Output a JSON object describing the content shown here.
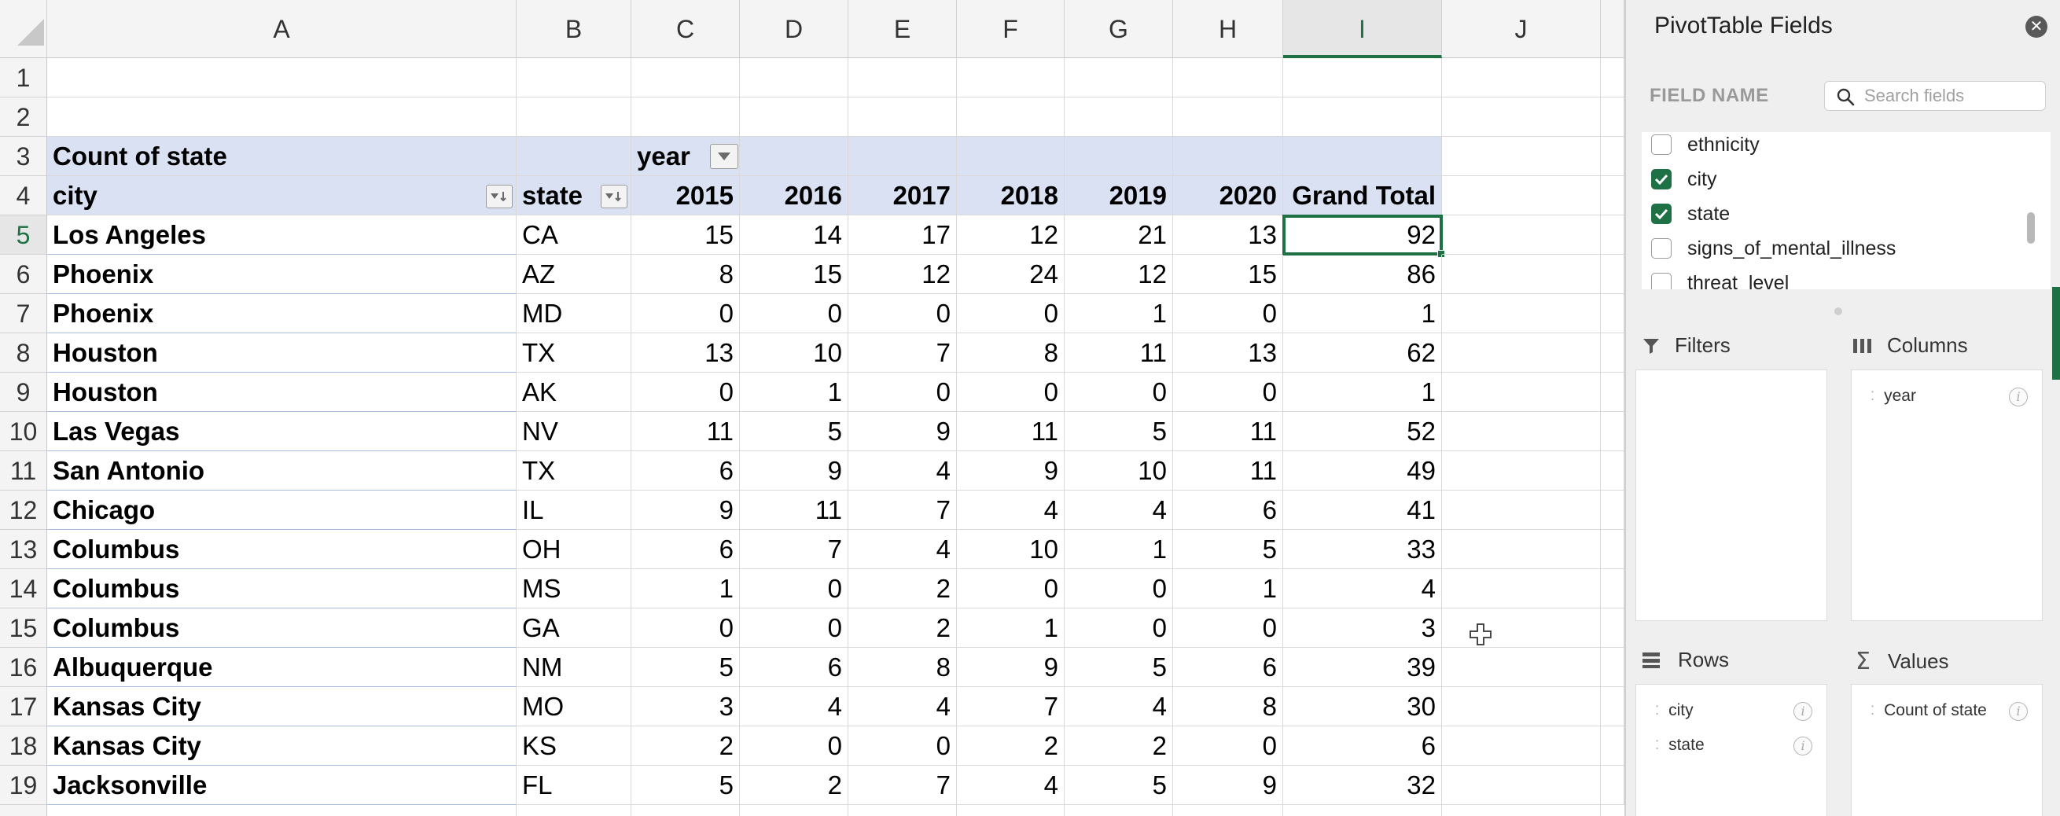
{
  "grid": {
    "columns": [
      "A",
      "B",
      "C",
      "D",
      "E",
      "F",
      "G",
      "H",
      "I",
      "J"
    ],
    "row_numbers": [
      "1",
      "2",
      "3",
      "4",
      "5",
      "6",
      "7",
      "8",
      "9",
      "10",
      "11",
      "12",
      "13",
      "14",
      "15",
      "16",
      "17",
      "18",
      "19"
    ],
    "active_column": "I",
    "active_row": "5"
  },
  "pivot": {
    "header_label": "Count of state",
    "column_field_label": "year",
    "row_field_city": "city",
    "row_field_state": "state",
    "years": [
      "2015",
      "2016",
      "2017",
      "2018",
      "2019",
      "2020"
    ],
    "grand_total_label": "Grand Total",
    "rows": [
      {
        "city": "Los Angeles",
        "state": "CA",
        "v": [
          "15",
          "14",
          "17",
          "12",
          "21",
          "13"
        ],
        "total": "92"
      },
      {
        "city": "Phoenix",
        "state": "AZ",
        "v": [
          "8",
          "15",
          "12",
          "24",
          "12",
          "15"
        ],
        "total": "86"
      },
      {
        "city": "Phoenix",
        "state": "MD",
        "v": [
          "0",
          "0",
          "0",
          "0",
          "1",
          "0"
        ],
        "total": "1"
      },
      {
        "city": "Houston",
        "state": "TX",
        "v": [
          "13",
          "10",
          "7",
          "8",
          "11",
          "13"
        ],
        "total": "62"
      },
      {
        "city": "Houston",
        "state": "AK",
        "v": [
          "0",
          "1",
          "0",
          "0",
          "0",
          "0"
        ],
        "total": "1"
      },
      {
        "city": "Las Vegas",
        "state": "NV",
        "v": [
          "11",
          "5",
          "9",
          "11",
          "5",
          "11"
        ],
        "total": "52"
      },
      {
        "city": "San Antonio",
        "state": "TX",
        "v": [
          "6",
          "9",
          "4",
          "9",
          "10",
          "11"
        ],
        "total": "49"
      },
      {
        "city": "Chicago",
        "state": "IL",
        "v": [
          "9",
          "11",
          "7",
          "4",
          "4",
          "6"
        ],
        "total": "41"
      },
      {
        "city": "Columbus",
        "state": "OH",
        "v": [
          "6",
          "7",
          "4",
          "10",
          "1",
          "5"
        ],
        "total": "33"
      },
      {
        "city": "Columbus",
        "state": "MS",
        "v": [
          "1",
          "0",
          "2",
          "0",
          "0",
          "1"
        ],
        "total": "4"
      },
      {
        "city": "Columbus",
        "state": "GA",
        "v": [
          "0",
          "0",
          "2",
          "1",
          "0",
          "0"
        ],
        "total": "3"
      },
      {
        "city": "Albuquerque",
        "state": "NM",
        "v": [
          "5",
          "6",
          "8",
          "9",
          "5",
          "6"
        ],
        "total": "39"
      },
      {
        "city": "Kansas City",
        "state": "MO",
        "v": [
          "3",
          "4",
          "4",
          "7",
          "4",
          "8"
        ],
        "total": "30"
      },
      {
        "city": "Kansas City",
        "state": "KS",
        "v": [
          "2",
          "0",
          "0",
          "2",
          "2",
          "0"
        ],
        "total": "6"
      },
      {
        "city": "Jacksonville",
        "state": "FL",
        "v": [
          "5",
          "2",
          "7",
          "4",
          "5",
          "9"
        ],
        "total": "32"
      }
    ]
  },
  "pane": {
    "title": "PivotTable Fields",
    "field_name_label": "FIELD NAME",
    "search_placeholder": "Search fields",
    "fields": [
      {
        "name": "ethnicity",
        "checked": false
      },
      {
        "name": "city",
        "checked": true
      },
      {
        "name": "state",
        "checked": true
      },
      {
        "name": "signs_of_mental_illness",
        "checked": false
      },
      {
        "name": "threat_level",
        "checked": false
      }
    ],
    "filters_label": "Filters",
    "columns_label": "Columns",
    "rows_label": "Rows",
    "values_label": "Values",
    "columns_items": [
      "year"
    ],
    "rows_items": [
      "city",
      "state"
    ],
    "values_items": [
      "Count of state"
    ]
  },
  "colors": {
    "accent_green": "#1e7145",
    "pivot_band": "#d9e1f2"
  }
}
